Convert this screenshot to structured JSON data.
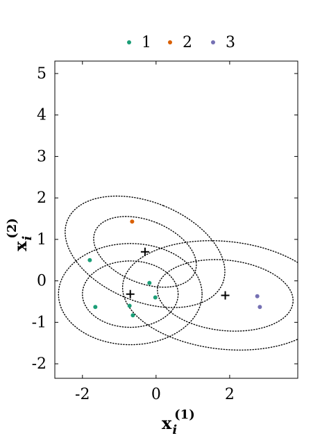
{
  "chart_data": {
    "type": "scatter",
    "legend": {
      "placement": "top-center",
      "entries": [
        {
          "label": "1",
          "color": "#1b9e77"
        },
        {
          "label": "2",
          "color": "#d95f02"
        },
        {
          "label": "3",
          "color": "#7570b3"
        }
      ]
    },
    "axes": {
      "xlim": [
        -2.75,
        3.85
      ],
      "ylim": [
        -2.35,
        5.3
      ],
      "xticks": [
        -2,
        0,
        2
      ],
      "xtick_labels": [
        "-2",
        "0",
        "2"
      ],
      "yticks": [
        -2,
        -1,
        0,
        1,
        2,
        3,
        4,
        5
      ],
      "ytick_labels": [
        "-2",
        "-1",
        "0",
        "1",
        "2",
        "3",
        "4",
        "5"
      ],
      "xlabel": {
        "base": "x",
        "sub": "i",
        "sup": "(1)"
      },
      "ylabel": {
        "base": "x",
        "sub": "i",
        "sup": "(2)"
      },
      "grid": false
    },
    "series": [
      {
        "name": "1",
        "color": "#1b9e77",
        "points": [
          {
            "x": -1.8,
            "y": 0.5
          },
          {
            "x": -1.65,
            "y": -0.63
          },
          {
            "x": -0.72,
            "y": -0.6
          },
          {
            "x": -0.63,
            "y": -0.83
          },
          {
            "x": -0.18,
            "y": -0.05
          },
          {
            "x": -0.02,
            "y": -0.4
          }
        ]
      },
      {
        "name": "2",
        "color": "#d95f02",
        "points": [
          {
            "x": -0.65,
            "y": 1.43
          }
        ]
      },
      {
        "name": "3",
        "color": "#7570b3",
        "points": [
          {
            "x": 2.75,
            "y": -0.37
          },
          {
            "x": 2.82,
            "y": -0.63
          }
        ]
      }
    ],
    "centers": [
      {
        "x": -0.3,
        "y": 0.7
      },
      {
        "x": -0.7,
        "y": -0.32
      },
      {
        "x": 1.88,
        "y": -0.35
      }
    ],
    "ellipses": [
      {
        "cx": -0.3,
        "cy": 0.7,
        "rx": 0.85,
        "ry": 1.3,
        "angle_deg": 68
      },
      {
        "cx": -0.3,
        "cy": 0.7,
        "rx": 1.35,
        "ry": 2.02,
        "angle_deg": 68
      },
      {
        "cx": -0.7,
        "cy": -0.32,
        "rx": 1.3,
        "ry": 0.8,
        "angle_deg": 0
      },
      {
        "cx": -0.7,
        "cy": -0.32,
        "rx": 1.95,
        "ry": 1.22,
        "angle_deg": 0
      },
      {
        "cx": 1.88,
        "cy": -0.35,
        "rx": 1.85,
        "ry": 0.85,
        "angle_deg": -6
      },
      {
        "cx": 1.88,
        "cy": -0.35,
        "rx": 2.8,
        "ry": 1.3,
        "angle_deg": -6
      }
    ]
  }
}
